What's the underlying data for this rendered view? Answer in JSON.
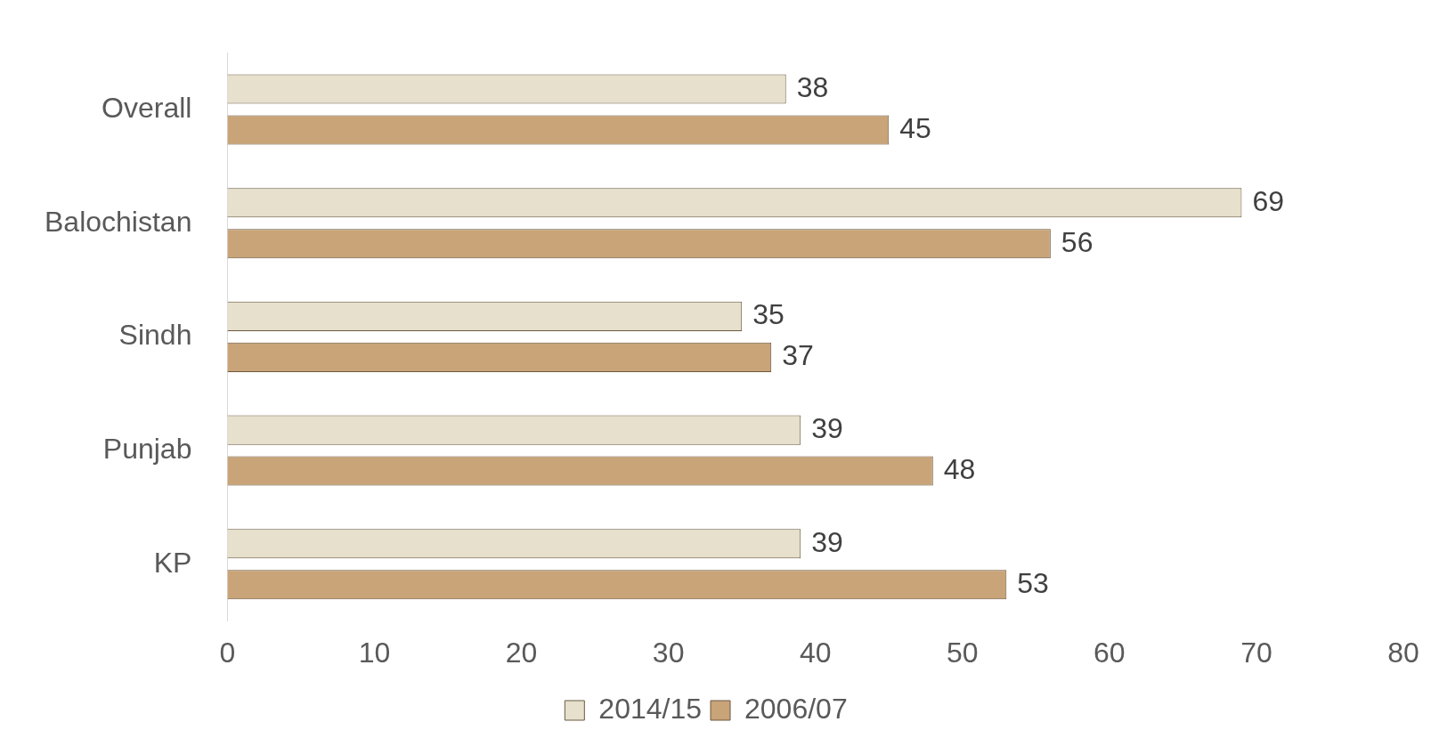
{
  "chart_data": {
    "type": "bar",
    "orientation": "horizontal",
    "categories": [
      "Overall",
      "Balochistan",
      "Sindh",
      "Punjab",
      "KP"
    ],
    "series": [
      {
        "name": "2014/15",
        "color": "#e6e0cc",
        "values": [
          38,
          69,
          35,
          39,
          39
        ]
      },
      {
        "name": "2006/07",
        "color": "#c9a478",
        "values": [
          45,
          56,
          37,
          48,
          53
        ]
      }
    ],
    "xlim": [
      0,
      80
    ],
    "xticks": [
      0,
      10,
      20,
      30,
      40,
      50,
      60,
      70,
      80
    ],
    "grid": false,
    "legend": "bottom",
    "data_labels": true
  }
}
